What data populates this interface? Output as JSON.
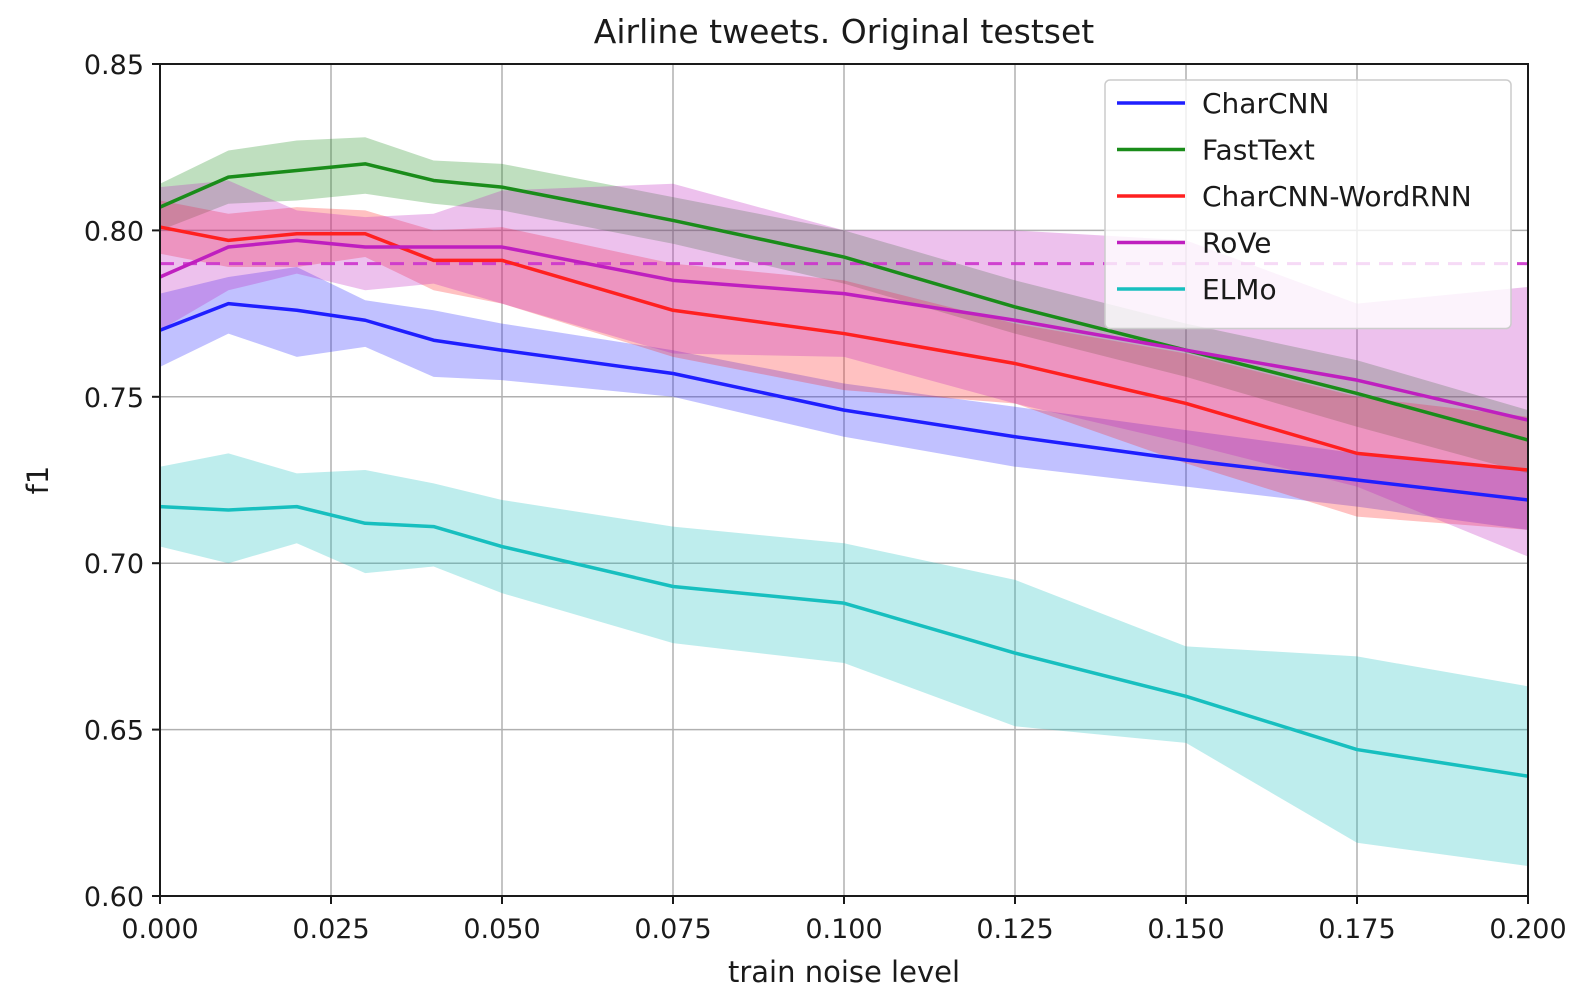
{
  "chart_data": {
    "type": "line",
    "title": "Airline tweets. Original testset",
    "xlabel": "train noise level",
    "ylabel": "f1",
    "xlim": [
      0.0,
      0.2
    ],
    "ylim": [
      0.6,
      0.85
    ],
    "xticks": [
      0.0,
      0.025,
      0.05,
      0.075,
      0.1,
      0.125,
      0.15,
      0.175,
      0.2
    ],
    "xtick_labels": [
      "0.000",
      "0.025",
      "0.050",
      "0.075",
      "0.100",
      "0.125",
      "0.150",
      "0.175",
      "0.200"
    ],
    "yticks": [
      0.6,
      0.65,
      0.7,
      0.75,
      0.8,
      0.85
    ],
    "ytick_labels": [
      "0.60",
      "0.65",
      "0.70",
      "0.75",
      "0.80",
      "0.85"
    ],
    "grid": true,
    "legend_position": "top-right",
    "reference_line": {
      "y": 0.79,
      "color": "#cc33cc",
      "style": "dashed"
    },
    "x": [
      0.0,
      0.01,
      0.02,
      0.03,
      0.04,
      0.05,
      0.075,
      0.1,
      0.125,
      0.15,
      0.175,
      0.2
    ],
    "series": [
      {
        "name": "CharCNN",
        "color": "#1f1fff",
        "values": [
          0.77,
          0.778,
          0.776,
          0.773,
          0.767,
          0.764,
          0.757,
          0.746,
          0.738,
          0.731,
          0.725,
          0.719
        ],
        "lower": [
          0.759,
          0.769,
          0.762,
          0.765,
          0.756,
          0.755,
          0.75,
          0.738,
          0.729,
          0.723,
          0.717,
          0.71
        ],
        "upper": [
          0.781,
          0.786,
          0.789,
          0.779,
          0.776,
          0.772,
          0.764,
          0.754,
          0.747,
          0.74,
          0.733,
          0.728
        ]
      },
      {
        "name": "FastText",
        "color": "#1a8c1a",
        "values": [
          0.807,
          0.816,
          0.818,
          0.82,
          0.815,
          0.813,
          0.803,
          0.792,
          0.777,
          0.764,
          0.751,
          0.737
        ],
        "lower": [
          0.8,
          0.808,
          0.809,
          0.811,
          0.808,
          0.806,
          0.796,
          0.784,
          0.769,
          0.756,
          0.741,
          0.727
        ],
        "upper": [
          0.814,
          0.824,
          0.827,
          0.828,
          0.821,
          0.82,
          0.81,
          0.8,
          0.785,
          0.772,
          0.761,
          0.746
        ]
      },
      {
        "name": "CharCNN-WordRNN",
        "color": "#ff2020",
        "values": [
          0.801,
          0.797,
          0.799,
          0.799,
          0.791,
          0.791,
          0.776,
          0.769,
          0.76,
          0.748,
          0.733,
          0.728
        ],
        "lower": [
          0.793,
          0.789,
          0.789,
          0.792,
          0.782,
          0.778,
          0.762,
          0.752,
          0.748,
          0.73,
          0.714,
          0.71
        ],
        "upper": [
          0.809,
          0.805,
          0.807,
          0.806,
          0.8,
          0.801,
          0.79,
          0.785,
          0.772,
          0.763,
          0.75,
          0.744
        ]
      },
      {
        "name": "RoVe",
        "color": "#bf1fbf",
        "values": [
          0.786,
          0.795,
          0.797,
          0.795,
          0.795,
          0.795,
          0.785,
          0.781,
          0.773,
          0.764,
          0.755,
          0.743
        ],
        "lower": [
          0.77,
          0.782,
          0.787,
          0.782,
          0.784,
          0.778,
          0.763,
          0.762,
          0.748,
          0.736,
          0.723,
          0.702
        ],
        "upper": [
          0.813,
          0.815,
          0.806,
          0.804,
          0.805,
          0.812,
          0.814,
          0.8,
          0.8,
          0.797,
          0.778,
          0.783
        ]
      },
      {
        "name": "ELMo",
        "color": "#17bfbf",
        "values": [
          0.717,
          0.716,
          0.717,
          0.712,
          0.711,
          0.705,
          0.693,
          0.688,
          0.673,
          0.66,
          0.644,
          0.636
        ],
        "lower": [
          0.705,
          0.7,
          0.706,
          0.697,
          0.699,
          0.691,
          0.676,
          0.67,
          0.651,
          0.646,
          0.616,
          0.609
        ],
        "upper": [
          0.729,
          0.733,
          0.727,
          0.728,
          0.724,
          0.719,
          0.711,
          0.706,
          0.695,
          0.675,
          0.672,
          0.663
        ]
      }
    ]
  }
}
